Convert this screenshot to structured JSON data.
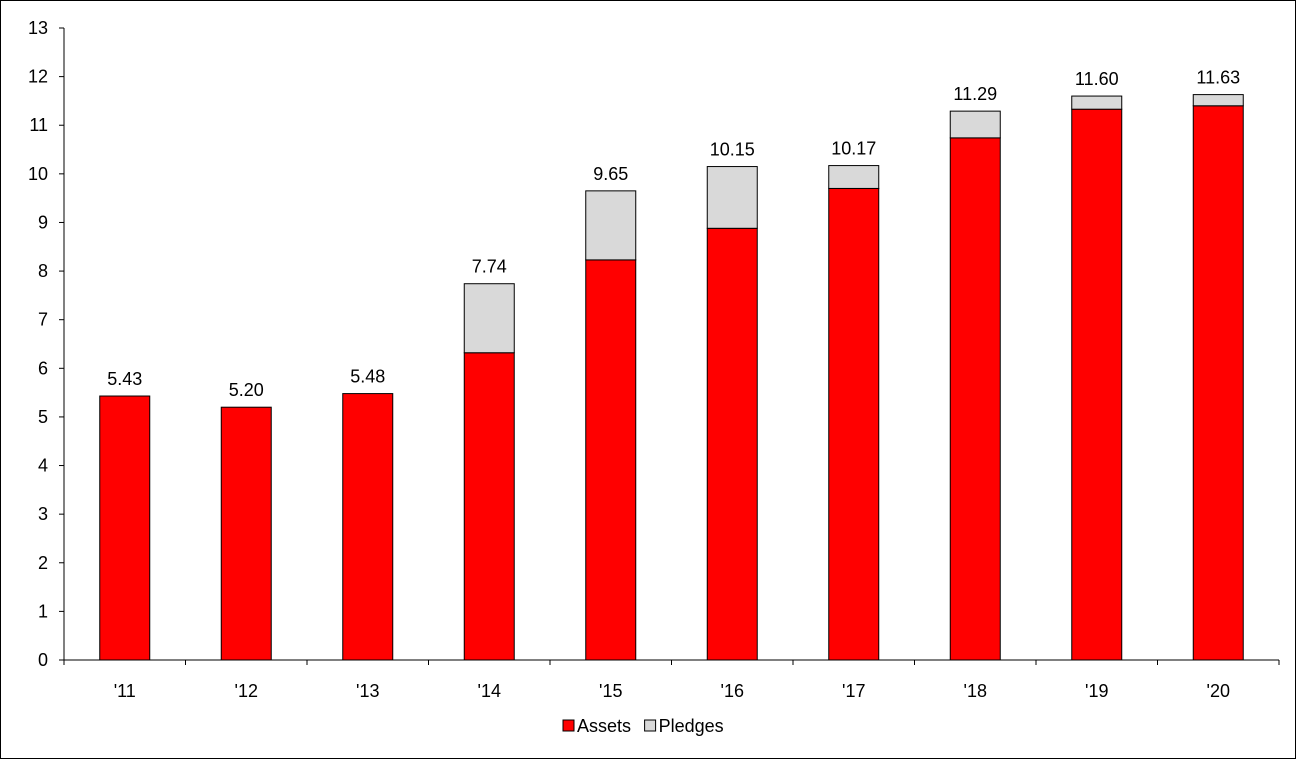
{
  "chart_data": {
    "type": "bar",
    "stacked": true,
    "categories": [
      "'11",
      "'12",
      "'13",
      "'14",
      "'15",
      "'16",
      "'17",
      "'18",
      "'19",
      "'20"
    ],
    "series": [
      {
        "name": "Assets",
        "color": "#ff0000",
        "values": [
          5.43,
          5.2,
          5.48,
          6.32,
          8.23,
          8.88,
          9.7,
          10.74,
          11.33,
          11.4
        ]
      },
      {
        "name": "Pledges",
        "color": "#d9d9d9",
        "values": [
          0.0,
          0.0,
          0.0,
          1.42,
          1.42,
          1.27,
          0.47,
          0.55,
          0.27,
          0.23
        ]
      }
    ],
    "totals": [
      "5.43",
      "5.20",
      "5.48",
      "7.74",
      "9.65",
      "10.15",
      "10.17",
      "11.29",
      "11.60",
      "11.63"
    ],
    "yticks": [
      "0",
      "1",
      "2",
      "3",
      "4",
      "5",
      "6",
      "7",
      "8",
      "9",
      "10",
      "11",
      "12",
      "13"
    ],
    "ylim": [
      0,
      13
    ],
    "grid": false,
    "legend": "bottom-center"
  }
}
